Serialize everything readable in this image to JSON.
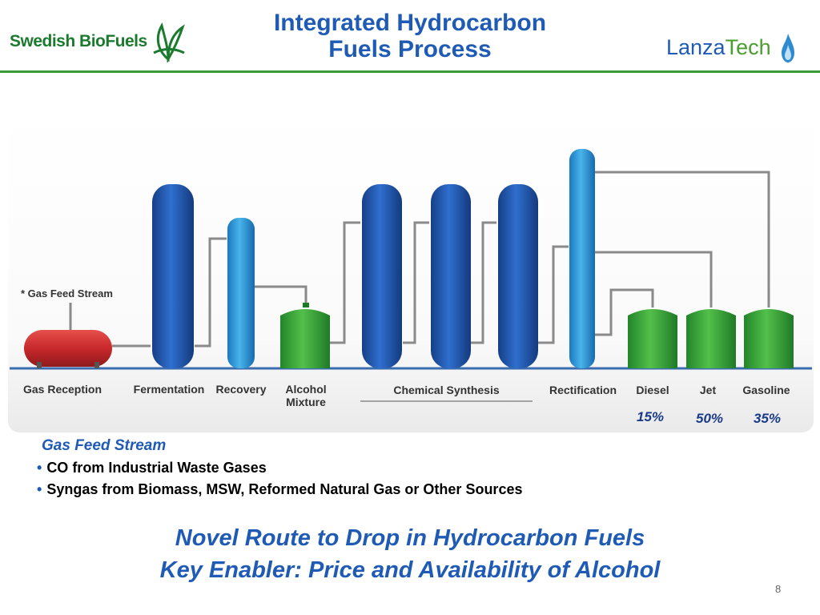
{
  "header": {
    "title_line1": "Integrated Hydrocarbon",
    "title_line2": "Fuels Process",
    "logo_left": "Swedish BioFuels",
    "logo_right_a": "Lanza",
    "logo_right_b": "Tech"
  },
  "diagram": {
    "feed_note": "* Gas Feed Stream",
    "stages": {
      "gas_reception": "Gas Reception",
      "fermentation": "Fermentation",
      "recovery": "Recovery",
      "alcohol_1": "Alcohol",
      "alcohol_2": "Mixture",
      "chemical_synthesis": "Chemical Synthesis",
      "rectification": "Rectification",
      "diesel": "Diesel",
      "jet": "Jet",
      "gasoline": "Gasoline"
    },
    "yields": {
      "diesel": "15%",
      "jet": "50%",
      "gasoline": "35%"
    }
  },
  "feed": {
    "heading": "Gas Feed Stream",
    "items": [
      "CO from Industrial Waste Gases",
      "Syngas from Biomass, MSW, Reformed Natural Gas or Other Sources"
    ]
  },
  "footer": {
    "line1": "Novel Route to Drop in Hydrocarbon Fuels",
    "line2": "Key Enabler: Price and Availability of Alcohol",
    "page": "8"
  },
  "colors": {
    "title_blue": "#1f5bb5",
    "brand_green": "#3a9a35",
    "column_blue": "#1e5fb4",
    "column_light_blue": "#2e9ad8",
    "tank_green": "#3aa53a",
    "vessel_red": "#c8282a"
  }
}
